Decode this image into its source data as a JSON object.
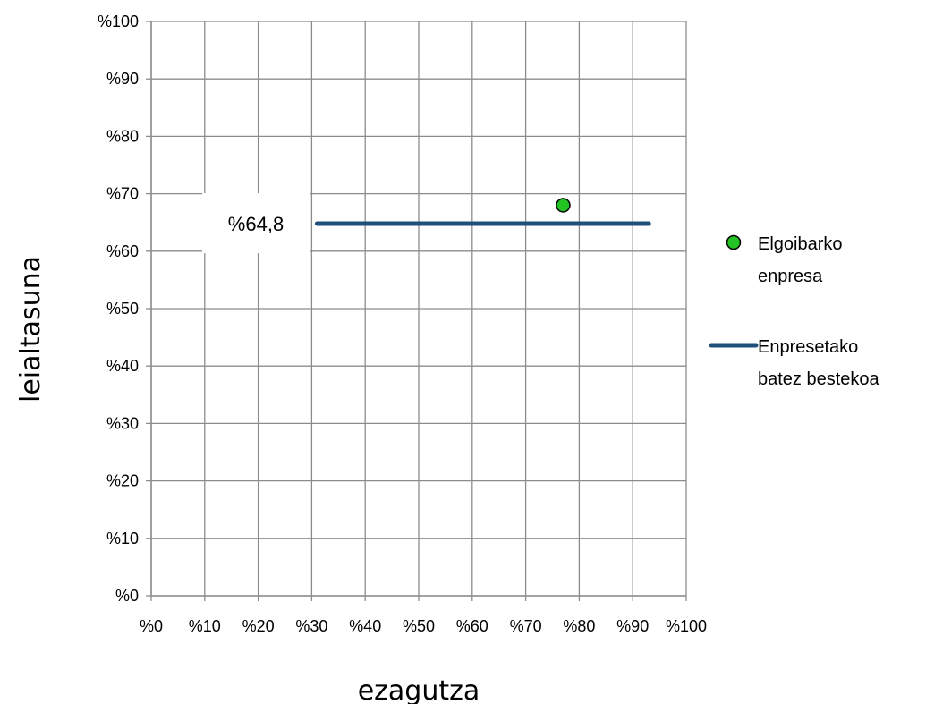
{
  "chart_data": {
    "type": "scatter",
    "title": "",
    "xlabel": "ezagutza",
    "ylabel": "leialtasuna",
    "xlim": [
      0,
      100
    ],
    "ylim": [
      0,
      100
    ],
    "x_ticks": [
      "%0",
      "%10",
      "%20",
      "%30",
      "%40",
      "%50",
      "%60",
      "%70",
      "%80",
      "%90",
      "%100"
    ],
    "y_ticks": [
      "%0",
      "%10",
      "%20",
      "%30",
      "%40",
      "%50",
      "%60",
      "%70",
      "%80",
      "%90",
      "%100"
    ],
    "grid": true,
    "legend_position": "right",
    "series": [
      {
        "name": "Elgoibarko enpresa",
        "legend_lines": [
          "Elgoibarko",
          "enpresa"
        ],
        "type": "scatter",
        "color": "#22c322",
        "points": [
          {
            "x": 77,
            "y": 68
          }
        ]
      },
      {
        "name": "Enpresetako batez bestekoa",
        "legend_lines": [
          "Enpresetako",
          "batez bestekoa"
        ],
        "type": "line",
        "color": "#1f4e79",
        "points": [
          {
            "x": 31,
            "y": 64.8
          },
          {
            "x": 93,
            "y": 64.8
          }
        ]
      }
    ],
    "annotations": [
      {
        "text": "%64,8",
        "x": 26,
        "y": 64.8
      }
    ]
  }
}
